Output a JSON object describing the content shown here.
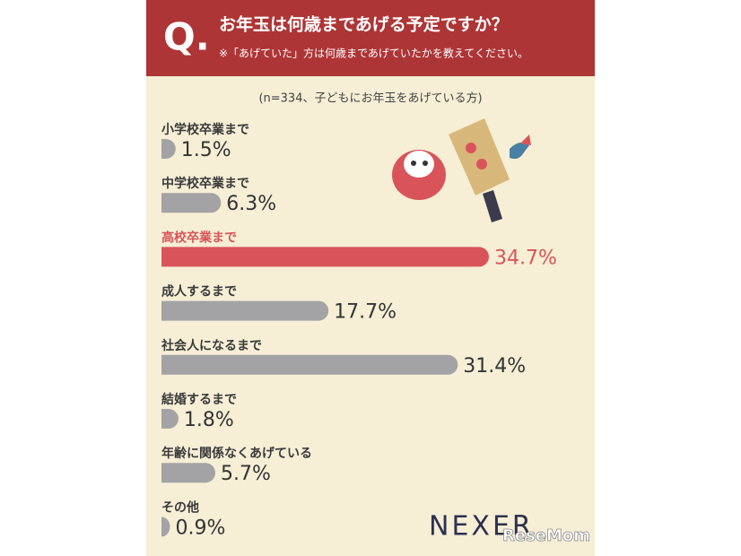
{
  "chart_data": {
    "type": "bar",
    "orientation": "horizontal",
    "question_mark": "Q.",
    "title": "お年玉は何歳まであげる予定ですか？",
    "note": "※「あげていた」方は何歳まであげていたかを教えてください。",
    "subtitle": "(n=334、子どもにお年玉をあげている方)",
    "categories": [
      "小学校卒業まで",
      "中学校卒業まで",
      "高校卒業まで",
      "成人するまで",
      "社会人になるまで",
      "結婚するまで",
      "年齢に関係なくあげている",
      "その他"
    ],
    "values": [
      1.5,
      6.3,
      34.7,
      17.7,
      31.4,
      1.8,
      5.7,
      0.9
    ],
    "value_labels": [
      "1.5%",
      "6.3%",
      "34.7%",
      "17.7%",
      "31.4%",
      "1.8%",
      "5.7%",
      "0.9%"
    ],
    "bar_colors": [
      "#a3a2a4",
      "#a3a2a4",
      "#d9545a",
      "#a3a2a4",
      "#a3a2a4",
      "#a3a2a4",
      "#a3a2a4",
      "#a3a2a4"
    ],
    "label_colors": [
      "#3a3a3a",
      "#3a3a3a",
      "#d9545a",
      "#3a3a3a",
      "#3a3a3a",
      "#3a3a3a",
      "#3a3a3a",
      "#3a3a3a"
    ],
    "brand": "NEXER",
    "watermark": "ReseMom"
  }
}
